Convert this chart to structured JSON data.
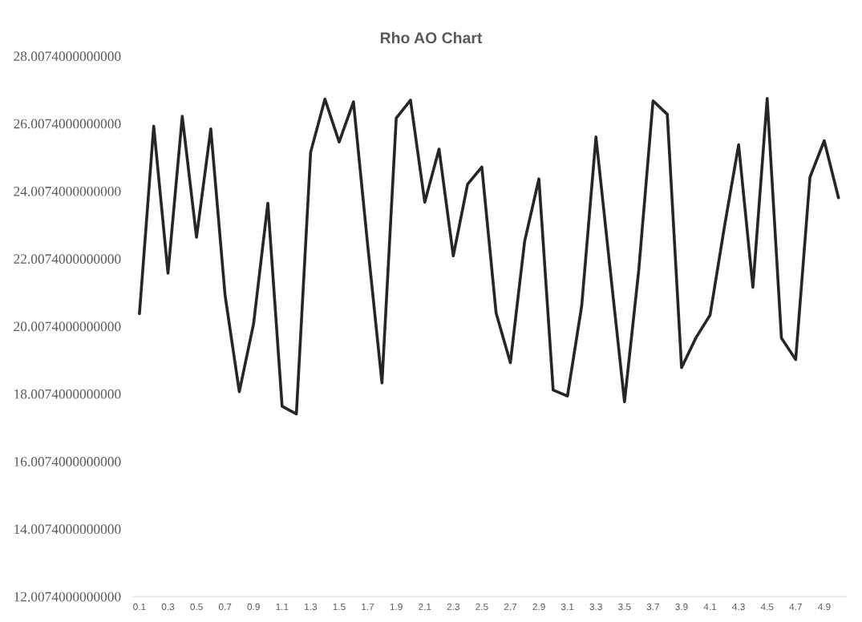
{
  "chart_data": {
    "type": "line",
    "title": "Rho AO Chart",
    "categories": [
      "0.1",
      null,
      "0.3",
      null,
      "0.5",
      null,
      "0.7",
      null,
      "0.9",
      null,
      "1.1",
      null,
      "1.3",
      null,
      "1.5",
      null,
      "1.7",
      null,
      "1.9",
      null,
      "2.1",
      null,
      "2.3",
      null,
      "2.5",
      null,
      "2.7",
      null,
      "2.9",
      null,
      "3.1",
      null,
      "3.3",
      null,
      "3.5",
      null,
      "3.7",
      null,
      "3.9",
      null,
      "4.1",
      null,
      "4.3",
      null,
      "4.5",
      null,
      "4.7",
      null,
      "4.9",
      null
    ],
    "series": [
      {
        "color": "#262626",
        "values": [
          20.38,
          25.93,
          21.58,
          26.22,
          22.64,
          25.85,
          20.93,
          18.07,
          20.08,
          23.65,
          17.64,
          17.41,
          25.16,
          26.73,
          25.46,
          26.65,
          22.4,
          18.33,
          26.17,
          26.7,
          23.68,
          25.25,
          22.09,
          24.21,
          24.72,
          20.4,
          18.93,
          22.52,
          24.37,
          18.12,
          17.94,
          20.61,
          25.61,
          21.67,
          17.77,
          21.67,
          26.68,
          26.28,
          18.78,
          19.66,
          20.34,
          22.94,
          25.38,
          21.16,
          26.75,
          19.66,
          19.02,
          24.42,
          25.5,
          23.81
        ]
      }
    ],
    "ylim": [
      12.0074,
      28.0074
    ],
    "yticks": [
      {
        "value": 12.0074,
        "label": "12.0074000000000"
      },
      {
        "value": 14.0074,
        "label": "14.0074000000000"
      },
      {
        "value": 16.0074,
        "label": "16.0074000000000"
      },
      {
        "value": 18.0074,
        "label": "18.0074000000000"
      },
      {
        "value": 20.0074,
        "label": "20.0074000000000"
      },
      {
        "value": 22.0074,
        "label": "22.0074000000000"
      },
      {
        "value": 24.0074,
        "label": "24.0074000000000"
      },
      {
        "value": 26.0074,
        "label": "26.0074000000000"
      },
      {
        "value": 28.0074,
        "label": "28.0074000000000"
      }
    ],
    "line_style": "solid"
  }
}
